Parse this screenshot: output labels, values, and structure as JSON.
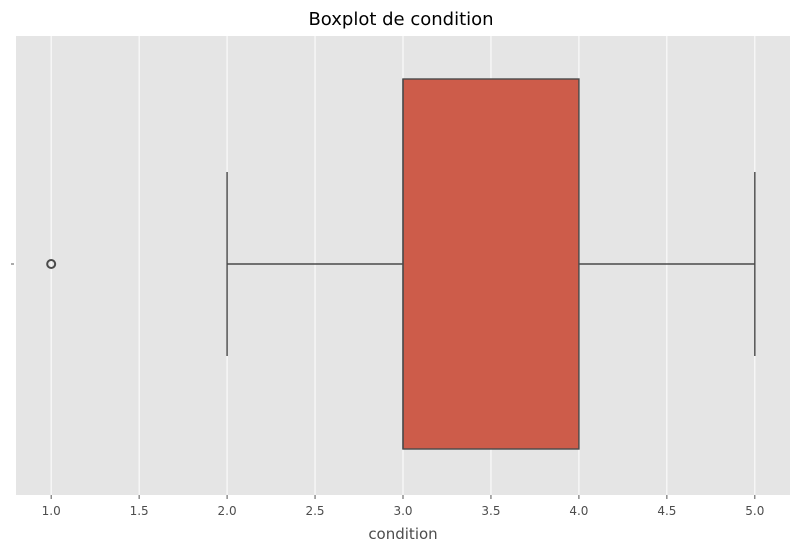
{
  "chart_data": {
    "type": "boxplot",
    "title": "Boxplot de condition",
    "xlabel": "condition",
    "ylabel": "",
    "orientation": "horizontal",
    "xlim": [
      0.8,
      5.2
    ],
    "xticks": [
      1.0,
      1.5,
      2.0,
      2.5,
      3.0,
      3.5,
      4.0,
      4.5,
      5.0
    ],
    "xtick_labels": [
      "1.0",
      "1.5",
      "2.0",
      "2.5",
      "3.0",
      "3.5",
      "4.0",
      "4.5",
      "5.0"
    ],
    "grid": true,
    "box": {
      "whisker_low": 2.0,
      "q1": 3.0,
      "median": 3.0,
      "q3": 4.0,
      "whisker_high": 5.0,
      "outliers": [
        1.0
      ]
    },
    "colors": {
      "box_fill": "#cd5c4a",
      "line": "#4a4a4a",
      "background": "#e5e5e5",
      "grid": "#ffffff"
    }
  }
}
